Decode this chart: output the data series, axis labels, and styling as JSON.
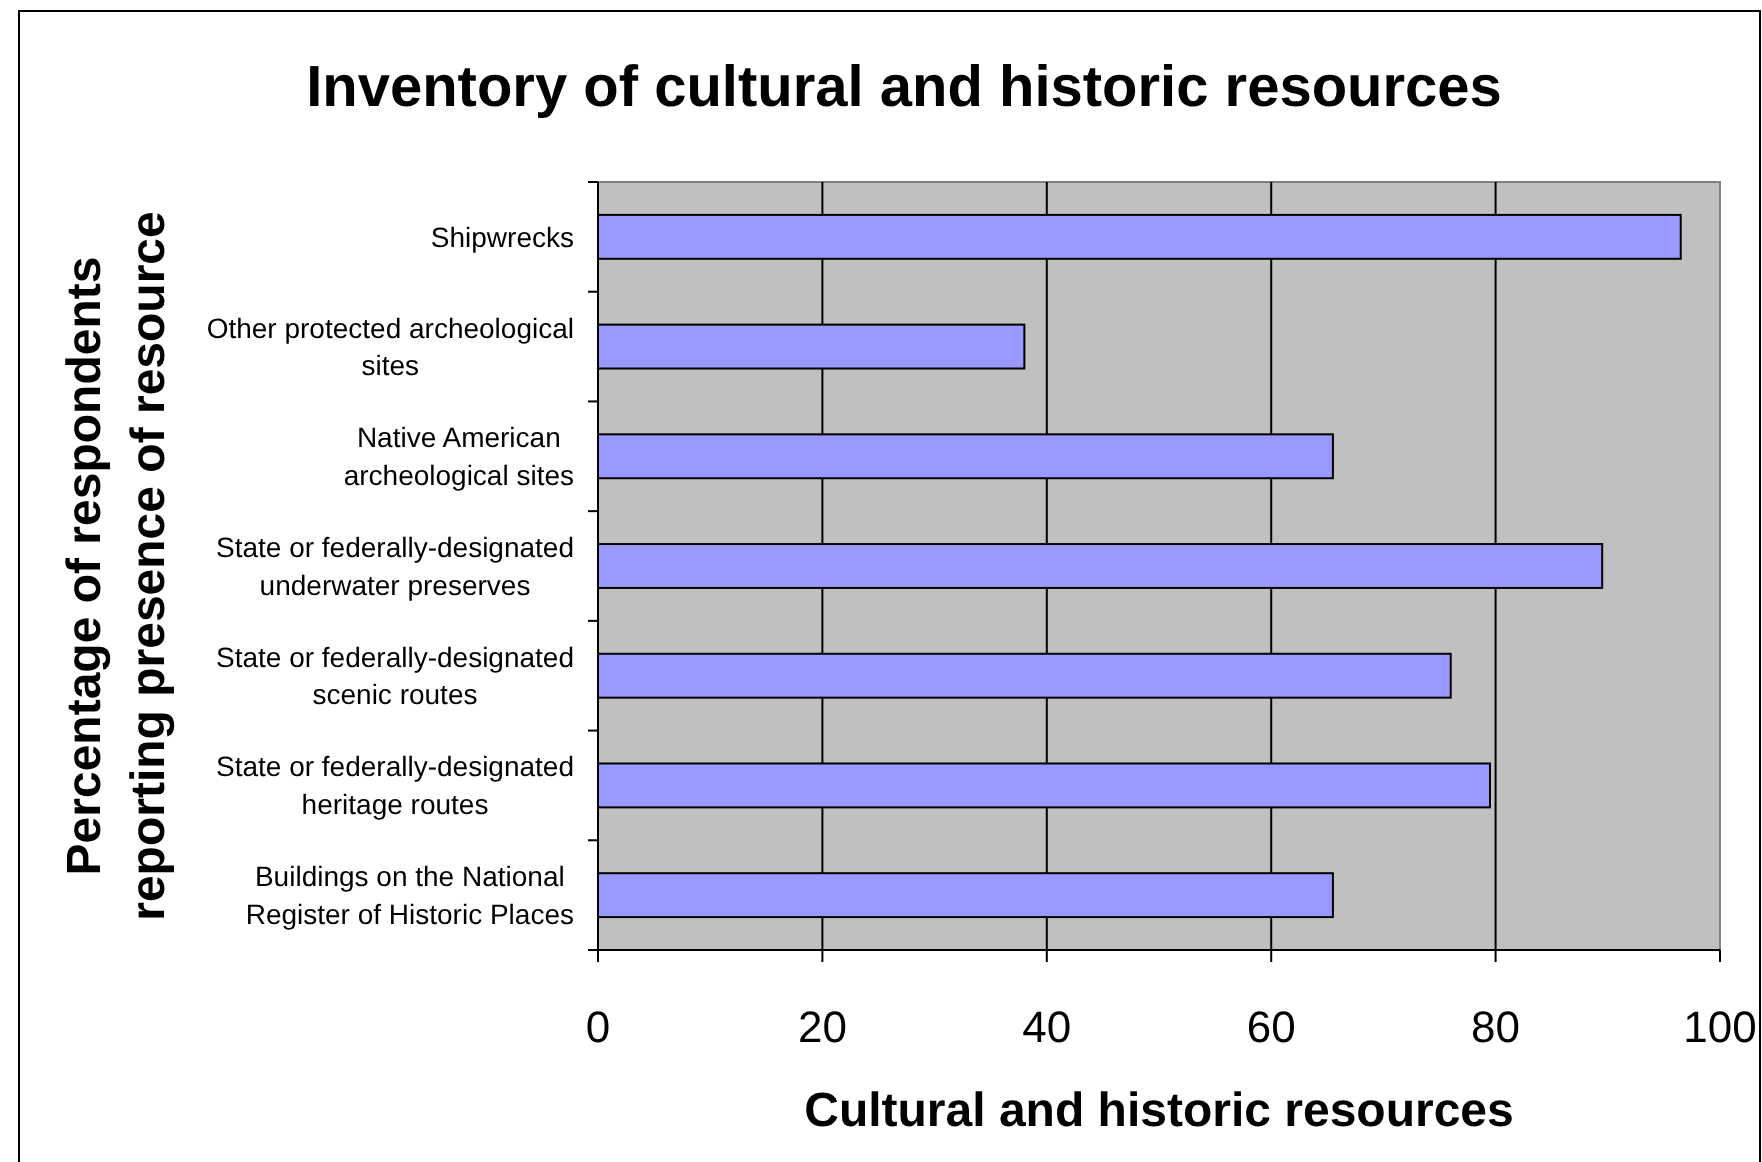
{
  "chart_data": {
    "type": "bar",
    "orientation": "horizontal",
    "title": "Inventory of cultural and historic resources",
    "xlabel": "Cultural and historic resources",
    "ylabel": "Percentage of respondents reporting presence of resource",
    "categories": [
      "Shipwrecks",
      "Other protected archeological sites",
      "Native American archeological sites",
      "State or federally-designated underwater preserves",
      "State or federally-designated scenic routes",
      "State or federally-designated heritage routes",
      "Buildings on the National Register of Historic Places"
    ],
    "values": [
      96.5,
      38,
      65.5,
      89.5,
      76,
      79.5,
      65.5
    ],
    "color": "#9999ff",
    "xlim": [
      0,
      100
    ],
    "xticks": [
      0,
      20,
      40,
      60,
      80,
      100
    ],
    "grid": "x"
  }
}
